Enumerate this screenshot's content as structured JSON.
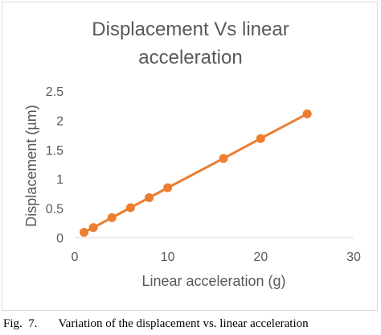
{
  "chart_data": {
    "type": "line",
    "title_lines": [
      "Displacement Vs linear",
      "acceleration"
    ],
    "xlabel": "Linear acceleration (g)",
    "ylabel": "Displacement (µm)",
    "xlim": [
      0,
      30
    ],
    "ylim": [
      0,
      2.5
    ],
    "x_ticks": [
      0,
      10,
      20,
      30
    ],
    "y_ticks": [
      0,
      0.5,
      1,
      1.5,
      2,
      2.5
    ],
    "x_tick_labels": [
      "0",
      "10",
      "20",
      "30"
    ],
    "y_tick_labels": [
      "0",
      "0.5",
      "1",
      "1.5",
      "2",
      "2.5"
    ],
    "grid": false,
    "color": "#ED7D31",
    "series": [
      {
        "x": [
          1,
          2,
          4,
          6,
          8,
          10,
          16,
          20,
          25
        ],
        "y": [
          0.09,
          0.17,
          0.34,
          0.51,
          0.68,
          0.85,
          1.35,
          1.69,
          2.11
        ]
      }
    ]
  },
  "caption": {
    "label": "Fig.  7.",
    "text": "Variation of the displacement vs. linear acceleration"
  }
}
